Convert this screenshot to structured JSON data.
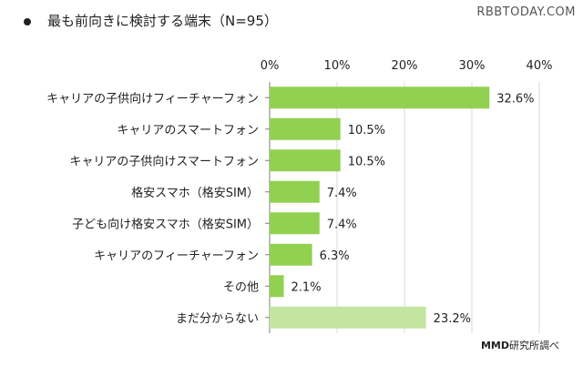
{
  "page": {
    "title": "最も前向きに検討する端末（N=95）",
    "watermark": "RBBTODAY.COM",
    "source_brand": "MMD",
    "source_suffix": "研究所調べ"
  },
  "colors": {
    "bar": "#92d050",
    "bar_last": "#c4e59f",
    "grid": "#d9d9d9",
    "axis": "#7f7f7f"
  },
  "chart_data": {
    "type": "bar",
    "orientation": "horizontal",
    "title": "最も前向きに検討する端末（N=95）",
    "categories": [
      "キャリアの子供向けフィーチャーフォン",
      "キャリアのスマートフォン",
      "キャリアの子供向けスマートフォン",
      "格安スマホ（格安SIM）",
      "子ども向け格安スマホ（格安SIM）",
      "キャリアのフィーチャーフォン",
      "その他",
      "まだ分からない"
    ],
    "values": [
      32.6,
      10.5,
      10.5,
      7.4,
      7.4,
      6.3,
      2.1,
      23.2
    ],
    "value_labels": [
      "32.6%",
      "10.5%",
      "10.5%",
      "7.4%",
      "7.4%",
      "6.3%",
      "2.1%",
      "23.2%"
    ],
    "xlim": [
      0,
      40
    ],
    "xticks": [
      0,
      10,
      20,
      30,
      40
    ],
    "xtick_labels": [
      "0%",
      "10%",
      "20%",
      "30%",
      "40%"
    ],
    "xaxis_position": "top",
    "grid": true,
    "legend": false
  }
}
